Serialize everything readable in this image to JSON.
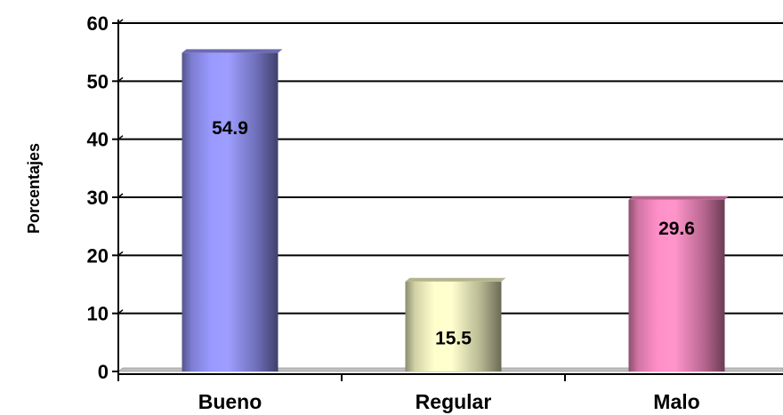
{
  "chart_data": {
    "type": "bar",
    "title": "",
    "xlabel": "",
    "ylabel": "Porcentajes",
    "categories": [
      "Bueno",
      "Regular",
      "Malo"
    ],
    "values": [
      54.9,
      15.5,
      29.6
    ],
    "data_labels": [
      "54.9",
      "15.5",
      "29.6"
    ],
    "ylim": [
      0,
      60
    ],
    "yticks": [
      0,
      10,
      20,
      30,
      40,
      50,
      60
    ],
    "grid": true,
    "legend": "none",
    "bar_style": "3d-cylinder",
    "colors": [
      "#9999ff",
      "#ffffcc",
      "#ff8fc8"
    ],
    "floor_color": "#c0c0c0"
  }
}
